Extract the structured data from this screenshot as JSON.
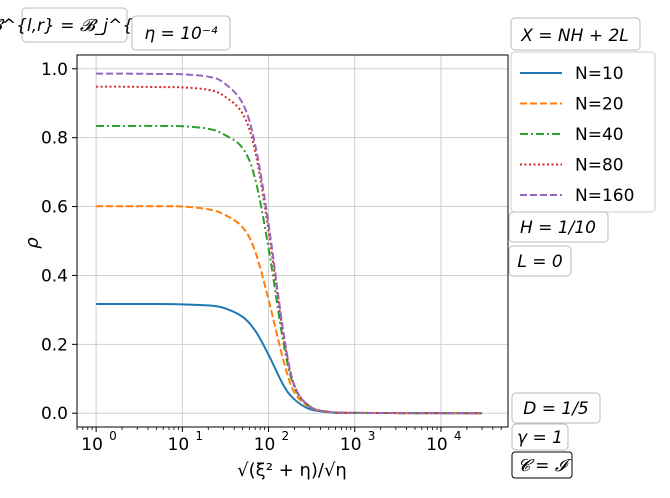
{
  "chart_data": {
    "type": "line",
    "title": "",
    "xlabel": "√(ξ² + η)/√η",
    "ylabel": "ρ",
    "xscale": "log",
    "xlim": [
      0.6,
      60000
    ],
    "ylim": [
      -0.04,
      1.04
    ],
    "xticks": [
      1,
      10,
      100,
      1000,
      10000
    ],
    "xtick_labels": [
      {
        "base": "10",
        "exp": "0"
      },
      {
        "base": "10",
        "exp": "1"
      },
      {
        "base": "10",
        "exp": "2"
      },
      {
        "base": "10",
        "exp": "3"
      },
      {
        "base": "10",
        "exp": "4"
      }
    ],
    "yticks": [
      0.0,
      0.2,
      0.4,
      0.6,
      0.8,
      1.0
    ],
    "ytick_labels": [
      "0.0",
      "0.2",
      "0.4",
      "0.6",
      "0.8",
      "1.0"
    ],
    "grid": true,
    "legend_placement": "outside-right-top",
    "x": [
      1,
      2,
      5,
      10,
      20,
      30,
      50,
      70,
      100,
      150,
      200,
      300,
      500,
      1000,
      30000
    ],
    "series": [
      {
        "name": "N=10",
        "color": "#1f77b4",
        "dash": "solid",
        "values": [
          0.317,
          0.317,
          0.317,
          0.316,
          0.313,
          0.306,
          0.28,
          0.24,
          0.17,
          0.08,
          0.04,
          0.012,
          0.003,
          0.001,
          0.0
        ]
      },
      {
        "name": "N=20",
        "color": "#ff7f0e",
        "dash": "dashed",
        "values": [
          0.601,
          0.601,
          0.601,
          0.6,
          0.592,
          0.578,
          0.54,
          0.47,
          0.33,
          0.15,
          0.06,
          0.018,
          0.004,
          0.001,
          0.0
        ]
      },
      {
        "name": "N=40",
        "color": "#2ca02c",
        "dash": "dashdot",
        "values": [
          0.834,
          0.834,
          0.834,
          0.833,
          0.826,
          0.81,
          0.77,
          0.68,
          0.48,
          0.2,
          0.075,
          0.02,
          0.004,
          0.001,
          0.0
        ]
      },
      {
        "name": "N=80",
        "color": "#d62728",
        "dash": "dotted",
        "values": [
          0.948,
          0.948,
          0.947,
          0.946,
          0.939,
          0.922,
          0.87,
          0.76,
          0.53,
          0.22,
          0.08,
          0.02,
          0.004,
          0.001,
          0.0
        ]
      },
      {
        "name": "N=160",
        "color": "#9467bd",
        "dash": "dashed",
        "values": [
          0.986,
          0.986,
          0.985,
          0.984,
          0.977,
          0.96,
          0.9,
          0.78,
          0.55,
          0.23,
          0.08,
          0.02,
          0.004,
          0.001,
          0.0
        ]
      }
    ],
    "annotations": {
      "top_left": "𝓑^{l,r} = 𝓑_j^{l,r}",
      "top_eta": "η = 10⁻⁴",
      "top_right": "X = NH + 2L",
      "h": "H = 1/10",
      "l": "L = 0",
      "d": "D = 1/5",
      "gamma": "γ = 1",
      "c": "𝓒 = 𝓘"
    }
  }
}
